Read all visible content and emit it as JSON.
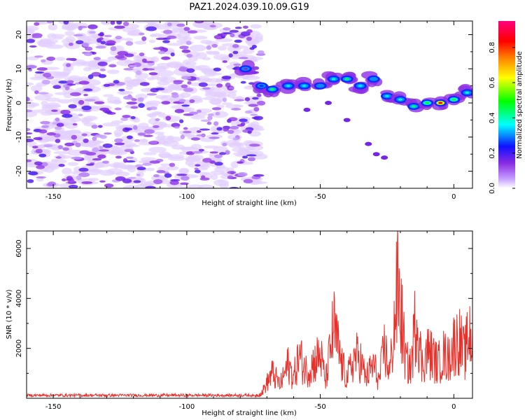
{
  "title": "PAZ1.2024.039.10.09.G19",
  "chart_data": [
    {
      "type": "heatmap",
      "xlabel": "Height of straight line (km)",
      "ylabel": "Frequency (Hz)",
      "xlim": [
        -160,
        7
      ],
      "ylim": [
        -25,
        24
      ],
      "xticks": [
        -150,
        -100,
        -50,
        0
      ],
      "yticks": [
        -20,
        -10,
        0,
        10,
        20
      ],
      "grid": false,
      "colorbar": {
        "label": "Normalized spectral amplitude",
        "range": [
          0.0,
          0.95
        ],
        "ticks": [
          0.0,
          0.2,
          0.4,
          0.6,
          0.8
        ],
        "colormap": [
          "#ffffff",
          "#8a2be2",
          "#1010ff",
          "#00ffff",
          "#00ff00",
          "#ffff00",
          "#ff8000",
          "#ff0000",
          "#ff0080"
        ]
      },
      "noise_region": {
        "x_from": -160,
        "x_to": -72,
        "y_from": -25,
        "y_to": 24,
        "amplitude_range": [
          0.05,
          0.2
        ]
      },
      "signal_track": [
        {
          "x": -78,
          "freq": 10,
          "amp": 0.15
        },
        {
          "x": -72,
          "freq": 5,
          "amp": 0.25
        },
        {
          "x": -68,
          "freq": 4,
          "amp": 0.45
        },
        {
          "x": -62,
          "freq": 5,
          "amp": 0.35
        },
        {
          "x": -56,
          "freq": 5,
          "amp": 0.35
        },
        {
          "x": -50,
          "freq": 5,
          "amp": 0.3
        },
        {
          "x": -45,
          "freq": 7,
          "amp": 0.4
        },
        {
          "x": -40,
          "freq": 7,
          "amp": 0.45
        },
        {
          "x": -35,
          "freq": 5,
          "amp": 0.35
        },
        {
          "x": -30,
          "freq": 7,
          "amp": 0.3
        },
        {
          "x": -25,
          "freq": 2,
          "amp": 0.35
        },
        {
          "x": -20,
          "freq": 1,
          "amp": 0.4
        },
        {
          "x": -15,
          "freq": -1,
          "amp": 0.45
        },
        {
          "x": -10,
          "freq": 0,
          "amp": 0.5
        },
        {
          "x": -5,
          "freq": 0,
          "amp": 0.85
        },
        {
          "x": 0,
          "freq": 1,
          "amp": 0.5
        },
        {
          "x": 5,
          "freq": 3,
          "amp": 0.4
        }
      ]
    },
    {
      "type": "line",
      "xlabel": "Height of straight line (km)",
      "ylabel": "SNR (10 * v/v)",
      "xlim": [
        -160,
        7
      ],
      "ylim": [
        0,
        6700
      ],
      "xticks": [
        -150,
        -100,
        -50,
        0
      ],
      "yticks": [
        2000,
        4000,
        6000
      ],
      "grid": false,
      "series": [
        {
          "color": "#e8302a",
          "x": [
            -160,
            -75,
            -72,
            -68,
            -65,
            -62,
            -60,
            -58,
            -55,
            -52,
            -50,
            -48,
            -45,
            -42,
            -40,
            -37,
            -35,
            -33,
            -30,
            -28,
            -26,
            -24,
            -22,
            -21,
            -20,
            -18,
            -16,
            -14,
            -12,
            -10,
            -8,
            -6,
            -4,
            -2,
            0,
            2,
            4,
            6,
            7
          ],
          "values": [
            100,
            120,
            300,
            1500,
            800,
            2000,
            1200,
            2500,
            1600,
            2200,
            2600,
            1000,
            4200,
            2000,
            1200,
            2500,
            2300,
            1200,
            2000,
            1000,
            3000,
            1500,
            4800,
            6700,
            5300,
            2200,
            1800,
            5300,
            1900,
            2800,
            2500,
            2000,
            2600,
            2300,
            3200,
            3500,
            2500,
            4000,
            2800
          ]
        }
      ]
    }
  ]
}
